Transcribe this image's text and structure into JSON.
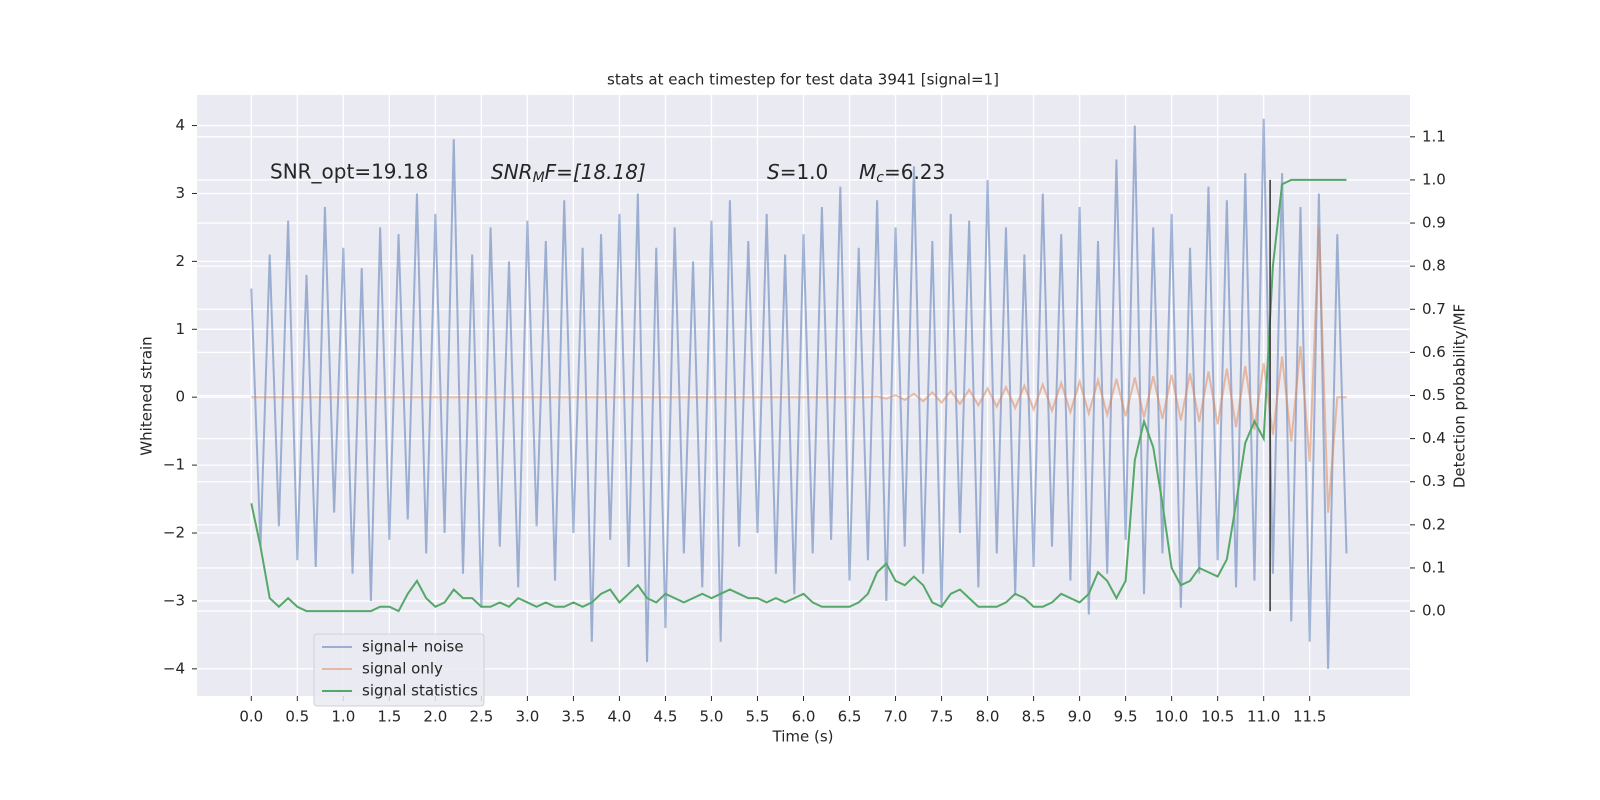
{
  "chart_data": {
    "type": "line",
    "title": "stats at each timestep for test data 3941 [signal=1]",
    "xlabel": "Time (s)",
    "ylabel": "Whitened strain",
    "y2label": "Detection probability/MF",
    "annotations": [
      {
        "text": "SNR_opt=19.18"
      },
      {
        "base": "SNR",
        "sub": "M",
        "rest": "F=[18.18]"
      },
      {
        "base": "S",
        "rest": "=1.0"
      },
      {
        "base": "M",
        "sub": "c",
        "rest": "=6.23"
      }
    ],
    "x": [
      0.0,
      0.1,
      0.2,
      0.3,
      0.4,
      0.5,
      0.6,
      0.7,
      0.8,
      0.9,
      1.0,
      1.1,
      1.2,
      1.3,
      1.4,
      1.5,
      1.6,
      1.7,
      1.8,
      1.9,
      2.0,
      2.1,
      2.2,
      2.3,
      2.4,
      2.5,
      2.6,
      2.7,
      2.8,
      2.9,
      3.0,
      3.1,
      3.2,
      3.3,
      3.4,
      3.5,
      3.6,
      3.7,
      3.8,
      3.9,
      4.0,
      4.1,
      4.2,
      4.3,
      4.4,
      4.5,
      4.6,
      4.7,
      4.8,
      4.9,
      5.0,
      5.1,
      5.2,
      5.3,
      5.4,
      5.5,
      5.6,
      5.7,
      5.8,
      5.9,
      6.0,
      6.1,
      6.2,
      6.3,
      6.4,
      6.5,
      6.6,
      6.7,
      6.8,
      6.9,
      7.0,
      7.1,
      7.2,
      7.3,
      7.4,
      7.5,
      7.6,
      7.7,
      7.8,
      7.9,
      8.0,
      8.1,
      8.2,
      8.3,
      8.4,
      8.5,
      8.6,
      8.7,
      8.8,
      8.9,
      9.0,
      9.1,
      9.2,
      9.3,
      9.4,
      9.5,
      9.6,
      9.7,
      9.8,
      9.9,
      10.0,
      10.1,
      10.2,
      10.3,
      10.4,
      10.5,
      10.6,
      10.7,
      10.8,
      10.9,
      11.0,
      11.1,
      11.2,
      11.3,
      11.4,
      11.5,
      11.6,
      11.7,
      11.8,
      11.9
    ],
    "series": [
      {
        "name": "signal+ noise",
        "color": "#4c72b0",
        "opacity": 0.5,
        "values": [
          1.6,
          -2.2,
          2.1,
          -1.9,
          2.6,
          -2.4,
          1.8,
          -2.5,
          2.8,
          -1.7,
          2.2,
          -2.6,
          1.9,
          -3.0,
          2.5,
          -2.1,
          2.4,
          -1.8,
          3.0,
          -2.3,
          2.7,
          -2.0,
          3.8,
          -2.6,
          2.1,
          -3.1,
          2.5,
          -2.2,
          2.0,
          -2.8,
          2.6,
          -1.9,
          2.3,
          -2.7,
          2.9,
          -2.0,
          2.2,
          -3.6,
          2.4,
          -2.1,
          2.7,
          -2.5,
          3.0,
          -3.9,
          2.2,
          -3.4,
          2.5,
          -2.3,
          2.0,
          -2.8,
          2.6,
          -3.6,
          2.9,
          -2.2,
          2.3,
          -2.0,
          2.7,
          -2.6,
          2.1,
          -2.9,
          2.4,
          -2.3,
          2.8,
          -2.1,
          3.1,
          -2.7,
          2.2,
          -2.4,
          2.9,
          -3.0,
          2.5,
          -2.2,
          3.4,
          -2.6,
          2.3,
          -3.1,
          2.7,
          -2.0,
          2.6,
          -2.8,
          3.2,
          -2.3,
          2.5,
          -2.9,
          2.1,
          -2.5,
          3.0,
          -2.2,
          2.4,
          -2.7,
          2.8,
          -3.2,
          2.3,
          -2.6,
          3.5,
          -2.1,
          4.0,
          -2.9,
          2.5,
          -2.3,
          2.7,
          -3.1,
          2.2,
          -2.6,
          3.1,
          -2.4,
          2.9,
          -2.8,
          3.3,
          -2.7,
          4.1,
          -2.6,
          3.3,
          -3.3,
          2.8,
          -3.6,
          3.0,
          -4.0,
          2.4,
          -2.3
        ]
      },
      {
        "name": "signal only",
        "color": "#dd8452",
        "opacity": 0.5,
        "values": [
          0,
          0,
          0,
          0,
          0,
          0,
          0,
          0,
          0,
          0,
          0,
          0,
          0,
          0,
          0,
          0,
          0,
          0,
          0,
          0,
          0,
          0,
          0,
          0,
          0,
          0,
          0,
          0,
          0,
          0,
          0,
          0,
          0,
          0,
          0,
          0,
          0,
          0,
          0,
          0,
          0,
          0,
          0,
          0,
          0,
          0,
          0,
          0,
          0,
          0,
          0,
          0,
          0,
          0,
          0,
          0,
          0,
          0,
          0,
          0,
          0,
          0,
          0,
          0,
          0,
          0,
          0,
          0,
          0.01,
          -0.02,
          0.03,
          -0.04,
          0.05,
          -0.06,
          0.07,
          -0.08,
          0.09,
          -0.1,
          0.11,
          -0.12,
          0.13,
          -0.14,
          0.15,
          -0.16,
          0.17,
          -0.18,
          0.19,
          -0.2,
          0.21,
          -0.22,
          0.23,
          -0.24,
          0.25,
          -0.26,
          0.27,
          -0.28,
          0.29,
          -0.3,
          0.31,
          -0.32,
          0.33,
          -0.34,
          0.35,
          -0.36,
          0.38,
          -0.4,
          0.42,
          -0.44,
          0.46,
          -0.48,
          0.5,
          -0.55,
          0.6,
          -0.65,
          0.75,
          -0.95,
          2.5,
          -1.7,
          0,
          0
        ]
      },
      {
        "name": "signal statistics",
        "color": "#55a868",
        "opacity": 1,
        "axis": "y2",
        "values": [
          0.25,
          0.15,
          0.03,
          0.01,
          0.03,
          0.01,
          0.0,
          0.0,
          0.0,
          0.0,
          0.0,
          0.0,
          0.0,
          0.0,
          0.01,
          0.01,
          0.0,
          0.04,
          0.07,
          0.03,
          0.01,
          0.02,
          0.05,
          0.03,
          0.03,
          0.01,
          0.01,
          0.02,
          0.01,
          0.03,
          0.02,
          0.01,
          0.02,
          0.01,
          0.01,
          0.02,
          0.01,
          0.02,
          0.04,
          0.05,
          0.02,
          0.04,
          0.06,
          0.03,
          0.02,
          0.04,
          0.03,
          0.02,
          0.03,
          0.04,
          0.03,
          0.04,
          0.05,
          0.04,
          0.03,
          0.03,
          0.02,
          0.03,
          0.02,
          0.03,
          0.04,
          0.02,
          0.01,
          0.01,
          0.01,
          0.01,
          0.02,
          0.04,
          0.09,
          0.11,
          0.07,
          0.06,
          0.08,
          0.06,
          0.02,
          0.01,
          0.04,
          0.05,
          0.03,
          0.01,
          0.01,
          0.01,
          0.02,
          0.04,
          0.03,
          0.01,
          0.01,
          0.02,
          0.04,
          0.03,
          0.02,
          0.04,
          0.09,
          0.07,
          0.03,
          0.07,
          0.35,
          0.44,
          0.38,
          0.25,
          0.1,
          0.06,
          0.07,
          0.1,
          0.09,
          0.08,
          0.12,
          0.25,
          0.39,
          0.44,
          0.4,
          0.8,
          0.99,
          1.0,
          1.0,
          1.0,
          1.0,
          1.0,
          1.0,
          1.0
        ]
      }
    ],
    "vline": {
      "x": 11.07,
      "ymin": 0,
      "ymax": 1,
      "color": "#333333"
    },
    "xlim": [
      -0.59,
      12.59
    ],
    "ylim": [
      -4.4,
      4.45
    ],
    "y2lim": [
      -0.197,
      1.197
    ],
    "xticks": [
      {
        "value": 0,
        "label": "0.0"
      },
      0.5,
      {
        "value": 1,
        "label": "1.0"
      },
      1.5,
      {
        "value": 2,
        "label": "2.0"
      },
      2.5,
      {
        "value": 3,
        "label": "3.0"
      },
      3.5,
      {
        "value": 4,
        "label": "4.0"
      },
      4.5,
      {
        "value": 5,
        "label": "5.0"
      },
      5.5,
      {
        "value": 6,
        "label": "6.0"
      },
      6.5,
      {
        "value": 7,
        "label": "7.0"
      },
      7.5,
      {
        "value": 8,
        "label": "8.0"
      },
      8.5,
      {
        "value": 9,
        "label": "9.0"
      },
      9.5,
      {
        "value": 10,
        "label": "10.0"
      },
      10.5,
      {
        "value": 11,
        "label": "11.0"
      },
      11.5
    ],
    "yticks": [
      {
        "value": -4,
        "label": "−4"
      },
      {
        "value": -3,
        "label": "−3"
      },
      {
        "value": -2,
        "label": "−2"
      },
      {
        "value": -1,
        "label": "−1"
      },
      0,
      1,
      2,
      3,
      4
    ],
    "y2ticks": [
      {
        "value": 0,
        "label": "0.0"
      },
      0.1,
      0.2,
      0.3,
      0.4,
      0.5,
      0.6,
      0.7,
      0.8,
      0.9,
      {
        "value": 1,
        "label": "1.0"
      },
      1.1
    ],
    "grid": true,
    "legend": "lower left"
  }
}
